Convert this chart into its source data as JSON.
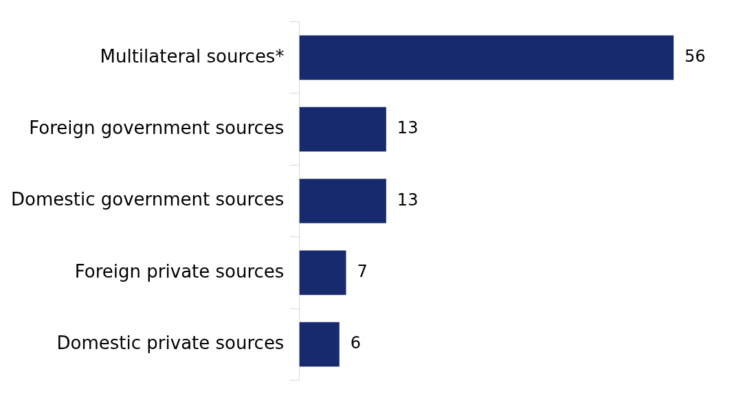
{
  "chart_data": {
    "type": "bar",
    "orientation": "horizontal",
    "categories": [
      "Multilateral sources*",
      "Foreign government sources",
      "Domestic government sources",
      "Foreign private sources",
      "Domestic private sources"
    ],
    "values": [
      56,
      13,
      13,
      7,
      6
    ],
    "color": "#172a6e",
    "data_labels": true,
    "legend": false,
    "tick_labels": "y"
  }
}
